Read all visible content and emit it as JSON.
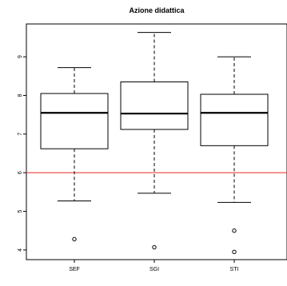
{
  "chart_data": {
    "type": "boxplot",
    "title": "Azione didattica",
    "xlabel": "",
    "ylabel": "",
    "categories": [
      "SEF",
      "SGI",
      "STI"
    ],
    "boxes": [
      {
        "category": "SEF",
        "whisker_low": 5.27,
        "q1": 6.62,
        "median": 7.55,
        "q3": 8.05,
        "whisker_high": 8.72,
        "outliers": [
          4.28
        ]
      },
      {
        "category": "SGI",
        "whisker_low": 5.47,
        "q1": 7.12,
        "median": 7.53,
        "q3": 8.35,
        "whisker_high": 9.63,
        "outliers": [
          4.07
        ]
      },
      {
        "category": "STI",
        "whisker_low": 5.23,
        "q1": 6.7,
        "median": 7.55,
        "q3": 8.03,
        "whisker_high": 9.0,
        "outliers": [
          4.5,
          3.95
        ]
      }
    ],
    "reference_line": {
      "value": 6,
      "color": "#e8403a"
    },
    "ylim": [
      3.75,
      9.85
    ],
    "yticks": [
      4,
      5,
      6,
      7,
      8,
      9
    ],
    "grid": false,
    "legend": "none",
    "colors": {
      "box_fill": "#ffffff",
      "stroke": "#000000",
      "reference": "#e8403a"
    }
  }
}
